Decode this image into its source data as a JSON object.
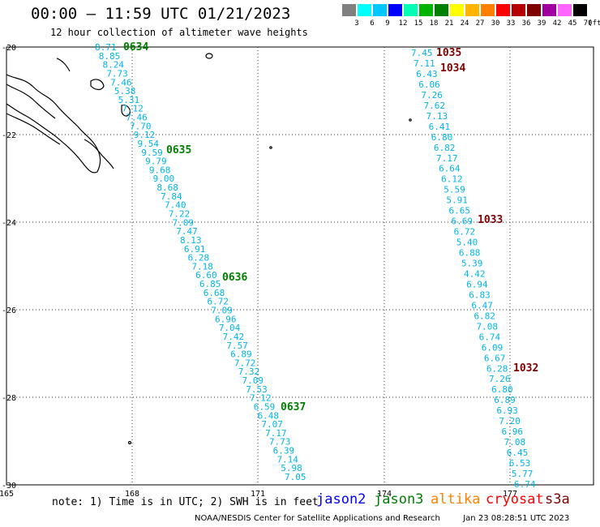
{
  "header": {
    "title": "00:00 – 11:59 UTC 01/21/2023",
    "subtitle": "12 hour collection of altimeter wave heights"
  },
  "legend": {
    "colors": [
      "#808080",
      "#00ffff",
      "#00c8ff",
      "#0000ff",
      "#00ffb4",
      "#00b400",
      "#008000",
      "#ffff00",
      "#ffb400",
      "#ff8000",
      "#ff0000",
      "#b40000",
      "#800000",
      "#a000a0",
      "#ff64ff",
      "#000000"
    ],
    "labels": [
      "3",
      "6",
      "9",
      "12",
      "15",
      "18",
      "21",
      "24",
      "27",
      "30",
      "33",
      "36",
      "39",
      "42",
      "45",
      "70"
    ],
    "unit": "(ft)"
  },
  "axes": {
    "lat_ticks": [
      "-20",
      "-22",
      "-24",
      "-26",
      "-28",
      "-30"
    ],
    "lon_ticks": [
      "165",
      "168",
      "171",
      "174",
      "177"
    ]
  },
  "tracks": {
    "west": {
      "values": [
        "8.71",
        "8.85",
        "8.24",
        "7.73",
        "7.46",
        "5.38",
        "5.31",
        "7.12",
        "7.46",
        "7.70",
        "9.12",
        "9.54",
        "9.59",
        "9.79",
        "9.68",
        "9.00",
        "8.68",
        "7.84",
        "7.40",
        "7.22",
        "7.09",
        "7.47",
        "8.13",
        "6.91",
        "6.28",
        "7.18",
        "6.60",
        "6.85",
        "6.68",
        "6.72",
        "7.09",
        "6.96",
        "7.04",
        "7.42",
        "7.57",
        "6.89",
        "7.72",
        "7.32",
        "7.09",
        "7.53",
        "7.12",
        "6.59",
        "6.48",
        "7.07",
        "7.17",
        "7.73",
        "6.39",
        "7.14",
        "5.98",
        "7.05"
      ],
      "times": [
        "0634",
        "0635",
        "0636",
        "0637"
      ]
    },
    "east": {
      "values": [
        "7.45",
        "7.11",
        "6.43",
        "6.06",
        "7.26",
        "7.62",
        "7.13",
        "6.41",
        "6.80",
        "6.82",
        "7.17",
        "6.64",
        "6.12",
        "5.59",
        "5.91",
        "6.65",
        "6.69",
        "6.72",
        "5.40",
        "6.88",
        "5.39",
        "4.42",
        "6.94",
        "6.83",
        "6.47",
        "6.82",
        "7.08",
        "6.74",
        "6.09",
        "6.67",
        "6.28",
        "7.26",
        "6.80",
        "6.89",
        "6.93",
        "7.20",
        "6.96",
        "7.08",
        "6.45",
        "6.53",
        "5.77",
        "6.74"
      ],
      "times": [
        "1035",
        "1034",
        "1033",
        "1032"
      ]
    }
  },
  "note": "note: 1) Time is in UTC; 2) SWH is in feet",
  "satellites": [
    {
      "name": "jason2",
      "color": "#0000ff"
    },
    {
      "name": "jason3",
      "color": "#008000"
    },
    {
      "name": "altika",
      "color": "#ff8000"
    },
    {
      "name": "cryosat",
      "color": "#ff0000"
    },
    {
      "name": "s3a",
      "color": "#800000"
    }
  ],
  "footer": {
    "credit": "NOAA/NESDIS Center for Satellite Applications and Research",
    "timestamp": "Jan 23 08:28:51 UTC 2023"
  }
}
